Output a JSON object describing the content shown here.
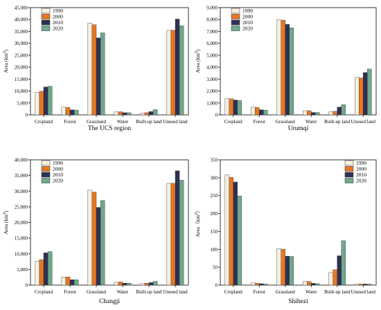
{
  "chart_data": [
    {
      "type": "bar",
      "title": "The UCS region",
      "ylabel": "Area (km²)",
      "categories": [
        "Cropland",
        "Forest",
        "Grassland",
        "Water",
        "Built-up land",
        "Unused land"
      ],
      "ylim": [
        0,
        45000
      ],
      "yticks": [
        0,
        5000,
        10000,
        15000,
        20000,
        25000,
        30000,
        35000,
        40000,
        45000
      ],
      "ytick_labels": [
        "0",
        "5,000",
        "10,000",
        "15,000",
        "20,000",
        "25,000",
        "30,000",
        "35,000",
        "40,000",
        "45,000"
      ],
      "series": [
        {
          "name": "1990",
          "values": [
            9500,
            3300,
            38500,
            1300,
            800,
            35500
          ]
        },
        {
          "name": "2000",
          "values": [
            9900,
            3100,
            37800,
            1300,
            900,
            35500
          ]
        },
        {
          "name": "2010",
          "values": [
            11700,
            2100,
            32300,
            900,
            1400,
            40200
          ]
        },
        {
          "name": "2020",
          "values": [
            12000,
            2000,
            34400,
            900,
            2200,
            37400
          ]
        }
      ],
      "legend": "top-left"
    },
    {
      "type": "bar",
      "title": "Urumqi",
      "ylabel": "Area (km²)",
      "categories": [
        "Cropland",
        "Forest",
        "Grassland",
        "Water",
        "Built-up land",
        "Unused land"
      ],
      "ylim": [
        0,
        9000
      ],
      "yticks": [
        0,
        1000,
        2000,
        3000,
        4000,
        5000,
        6000,
        7000,
        8000,
        9000
      ],
      "ytick_labels": [
        "0",
        "1,000",
        "2,000",
        "3,000",
        "4,000",
        "5,000",
        "6,000",
        "7,000",
        "8,000",
        "9,000"
      ],
      "series": [
        {
          "name": "1990",
          "values": [
            1350,
            650,
            8000,
            350,
            250,
            3150
          ]
        },
        {
          "name": "2000",
          "values": [
            1350,
            620,
            7950,
            350,
            300,
            3100
          ]
        },
        {
          "name": "2010",
          "values": [
            1250,
            430,
            7600,
            200,
            650,
            3550
          ]
        },
        {
          "name": "2020",
          "values": [
            1200,
            400,
            7300,
            200,
            850,
            3850
          ]
        }
      ],
      "legend": "top-left"
    },
    {
      "type": "bar",
      "title": "Changji",
      "ylabel": "Area (km²)",
      "categories": [
        "Cropland",
        "Forest",
        "Grassland",
        "Water",
        "Built-up land",
        "Unused land"
      ],
      "ylim": [
        0,
        40000
      ],
      "yticks": [
        0,
        5000,
        10000,
        15000,
        20000,
        25000,
        30000,
        35000,
        40000
      ],
      "ytick_labels": [
        "0",
        "5,000",
        "10,000",
        "15,000",
        "20,000",
        "25,000",
        "30,000",
        "35,000",
        "40,000"
      ],
      "series": [
        {
          "name": "1990",
          "values": [
            7700,
            2600,
            30300,
            900,
            500,
            32500
          ]
        },
        {
          "name": "2000",
          "values": [
            8100,
            2600,
            29700,
            1000,
            600,
            32500
          ]
        },
        {
          "name": "2010",
          "values": [
            10300,
            1700,
            24800,
            600,
            800,
            36500
          ]
        },
        {
          "name": "2020",
          "values": [
            10700,
            1700,
            27000,
            600,
            1200,
            33500
          ]
        }
      ],
      "legend": "top-left"
    },
    {
      "type": "bar",
      "title": "Shihezi",
      "ylabel": "Area（km²）",
      "categories": [
        "Cropland",
        "Forest",
        "Grassland",
        "Water",
        "Built-up land",
        "Unused land"
      ],
      "ylim": [
        0,
        350
      ],
      "yticks": [
        0,
        50,
        100,
        150,
        200,
        250,
        300,
        350
      ],
      "ytick_labels": [
        "0",
        "50",
        "100",
        "150",
        "200",
        "250",
        "300",
        "350"
      ],
      "series": [
        {
          "name": "1990",
          "values": [
            308,
            6,
            102,
            10,
            35,
            3
          ]
        },
        {
          "name": "2000",
          "values": [
            301,
            5,
            100,
            10,
            43,
            3
          ]
        },
        {
          "name": "2010",
          "values": [
            288,
            4,
            81,
            5,
            82,
            3
          ]
        },
        {
          "name": "2020",
          "values": [
            249,
            3,
            80,
            4,
            124,
            3
          ]
        }
      ],
      "legend": "top-right"
    }
  ],
  "colors": {
    "1990": "#f6f0e0",
    "2000": "#e87722",
    "2010": "#2e3153",
    "2020": "#6fa88c",
    "bar_edge": "#333333"
  }
}
